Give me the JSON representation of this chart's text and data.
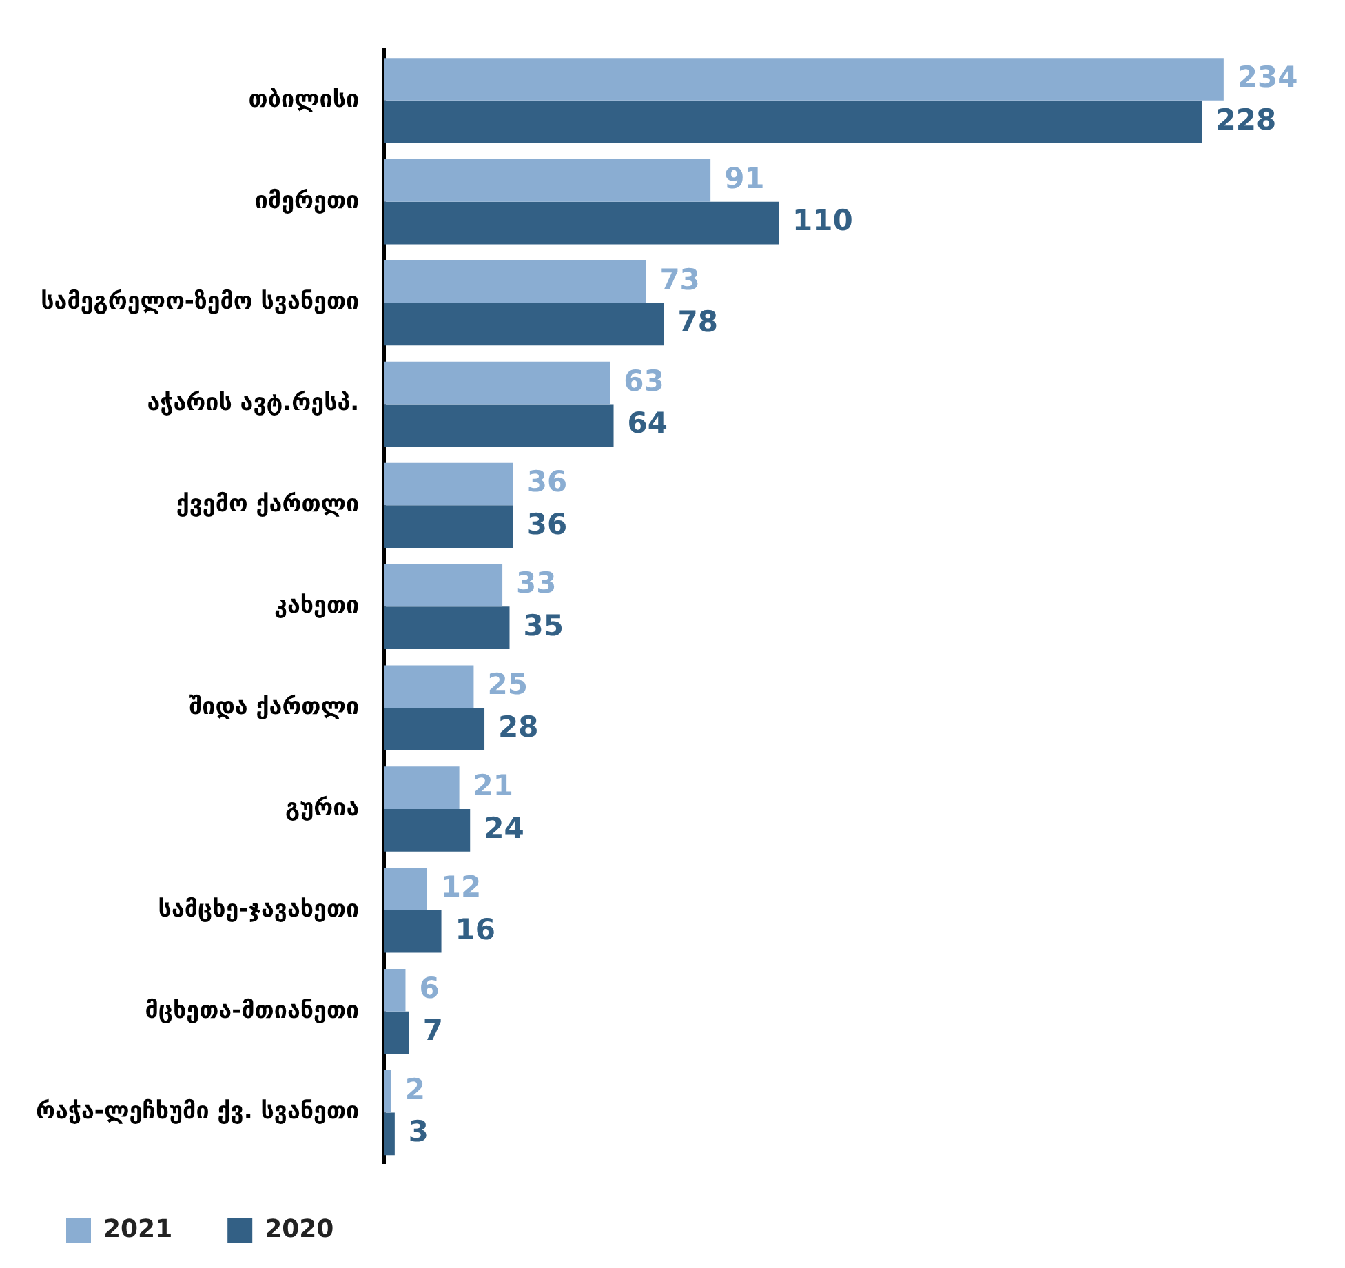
{
  "chart_data": {
    "type": "bar",
    "orientation": "horizontal",
    "categories": [
      "თბილისი",
      "იმერეთი",
      "სამეგრელო-ზემო სვანეთი",
      "აჭარის ავტ.რესპ.",
      "ქვემო ქართლი",
      "კახეთი",
      "შიდა ქართლი",
      "გურია",
      "სამცხე-ჯავახეთი",
      "მცხეთა-მთიანეთი",
      "რაჭა-ლეჩხუმი ქვ. სვანეთი"
    ],
    "series": [
      {
        "name": "2021",
        "color": "#8aadd2",
        "values": [
          234,
          91,
          73,
          63,
          36,
          33,
          25,
          21,
          12,
          6,
          2
        ]
      },
      {
        "name": "2020",
        "color": "#336085",
        "values": [
          228,
          110,
          78,
          64,
          36,
          35,
          28,
          24,
          16,
          7,
          3
        ]
      }
    ],
    "data_labels": true,
    "legend": "bottom left",
    "tick_labels": "y"
  }
}
